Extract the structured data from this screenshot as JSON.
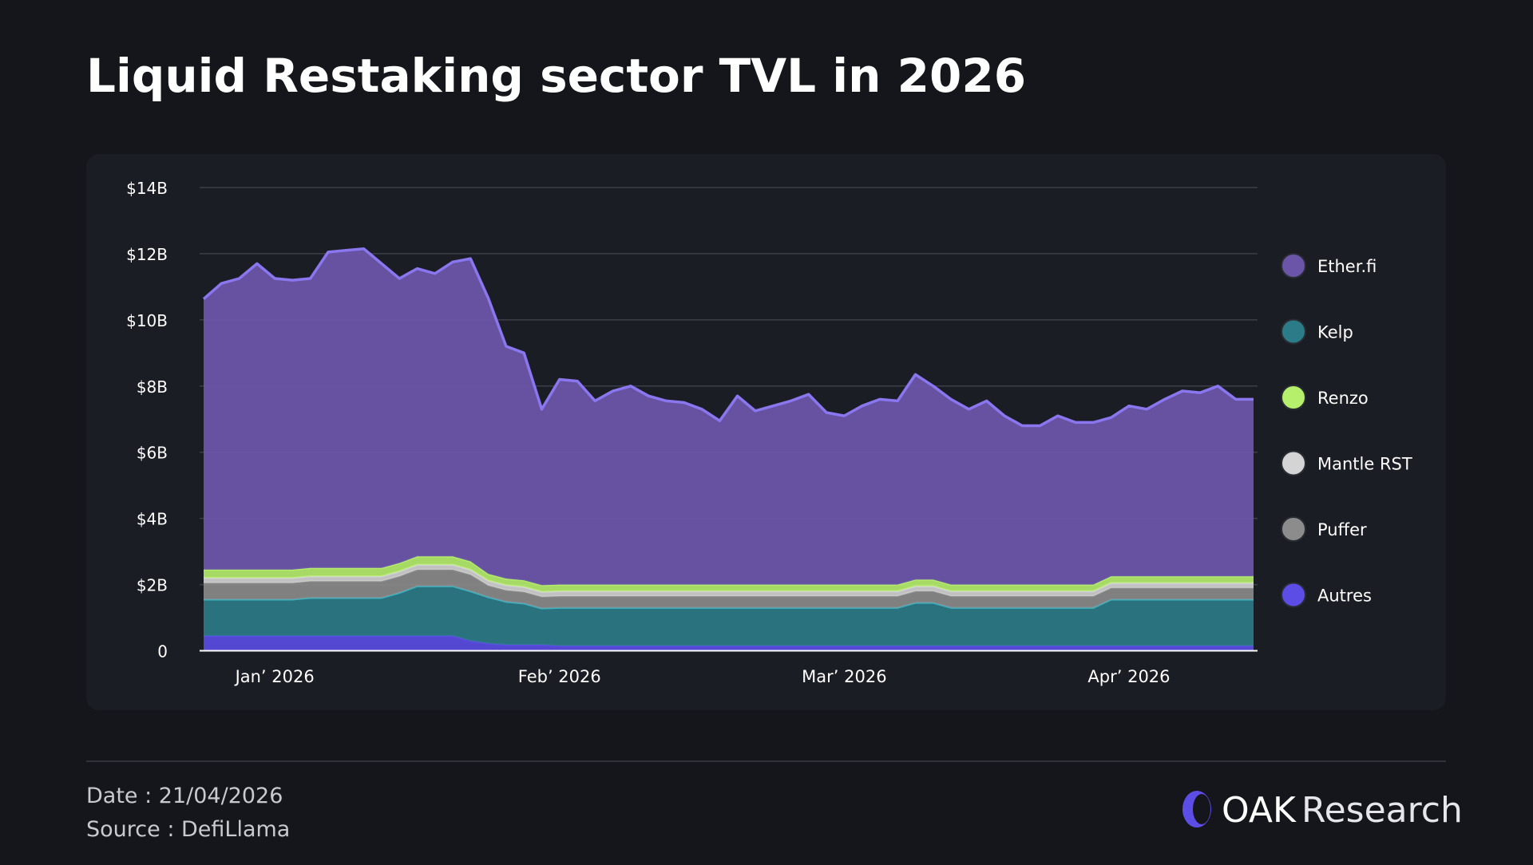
{
  "chart_data": {
    "type": "stacked_area",
    "title": "Liquid Restaking sector TVL in 2026",
    "categories": [
      null,
      null,
      null,
      null,
      "Jan’ 2026",
      null,
      null,
      null,
      null,
      null,
      null,
      null,
      null,
      null,
      null,
      null,
      null,
      null,
      null,
      null,
      "Feb’ 2026",
      null,
      null,
      null,
      null,
      null,
      null,
      null,
      null,
      null,
      null,
      null,
      null,
      null,
      null,
      null,
      "Mar’ 2026",
      null,
      null,
      null,
      null,
      null,
      null,
      null,
      null,
      null,
      null,
      null,
      null,
      null,
      null,
      null,
      "Apr’ 2026",
      null,
      null,
      null,
      null,
      null,
      null,
      null
    ],
    "ylim": [
      0,
      14
    ],
    "yticks": [
      0,
      {
        "value": 2,
        "label": "$2B"
      },
      {
        "value": 4,
        "label": "$4B"
      },
      {
        "value": 6,
        "label": "$6B"
      },
      {
        "value": 8,
        "label": "$8B"
      },
      {
        "value": 10,
        "label": "$10B"
      },
      {
        "value": 12,
        "label": "$12B"
      },
      {
        "value": 14,
        "label": "$14B"
      }
    ],
    "grid": true,
    "legend": "right",
    "series": [
      {
        "name": "Ether.fi",
        "color": "#6a55a8",
        "values": [
          8.18,
          8.65,
          8.8,
          9.25,
          8.8,
          8.75,
          8.75,
          9.55,
          9.6,
          9.65,
          9.2,
          8.6,
          8.7,
          8.55,
          8.9,
          9.15,
          8.33,
          7.02,
          6.87,
          5.32,
          6.2,
          6.15,
          5.55,
          5.85,
          6.0,
          5.7,
          5.55,
          5.5,
          5.3,
          4.95,
          5.7,
          5.25,
          5.4,
          5.55,
          5.75,
          5.2,
          5.1,
          5.4,
          5.6,
          5.55,
          6.2,
          5.85,
          5.6,
          5.3,
          5.55,
          5.1,
          4.8,
          4.8,
          5.1,
          4.9,
          4.9,
          4.8,
          5.15,
          5.05,
          5.35,
          5.6,
          5.55,
          5.75,
          5.35,
          5.35
        ]
      },
      {
        "name": "Kelp",
        "color": "#2b7c88",
        "values": [
          1.1,
          1.1,
          1.1,
          1.1,
          1.1,
          1.1,
          1.15,
          1.15,
          1.15,
          1.15,
          1.15,
          1.3,
          1.5,
          1.5,
          1.5,
          1.5,
          1.4,
          1.3,
          1.25,
          1.1,
          1.15,
          1.15,
          1.15,
          1.15,
          1.15,
          1.15,
          1.15,
          1.15,
          1.15,
          1.15,
          1.15,
          1.15,
          1.15,
          1.15,
          1.15,
          1.15,
          1.15,
          1.15,
          1.15,
          1.15,
          1.3,
          1.3,
          1.15,
          1.15,
          1.15,
          1.15,
          1.15,
          1.15,
          1.15,
          1.15,
          1.15,
          1.4,
          1.4,
          1.4,
          1.4,
          1.4,
          1.4,
          1.4,
          1.4,
          1.4
        ]
      },
      {
        "name": "Renzo",
        "color": "#b6ef6c",
        "values": [
          0.25,
          0.25,
          0.25,
          0.25,
          0.25,
          0.25,
          0.25,
          0.25,
          0.25,
          0.25,
          0.25,
          0.25,
          0.25,
          0.25,
          0.25,
          0.25,
          0.2,
          0.2,
          0.2,
          0.2,
          0.2,
          0.2,
          0.2,
          0.2,
          0.2,
          0.2,
          0.2,
          0.2,
          0.2,
          0.2,
          0.2,
          0.2,
          0.2,
          0.2,
          0.2,
          0.2,
          0.2,
          0.2,
          0.2,
          0.2,
          0.2,
          0.2,
          0.2,
          0.2,
          0.2,
          0.2,
          0.2,
          0.2,
          0.2,
          0.2,
          0.2,
          0.2,
          0.2,
          0.2,
          0.2,
          0.2,
          0.2,
          0.2,
          0.2,
          0.2
        ]
      },
      {
        "name": "Mantle RST",
        "color": "#d4d4d4",
        "values": [
          0.15,
          0.15,
          0.15,
          0.15,
          0.15,
          0.15,
          0.15,
          0.15,
          0.15,
          0.15,
          0.15,
          0.15,
          0.15,
          0.15,
          0.15,
          0.15,
          0.15,
          0.15,
          0.15,
          0.15,
          0.15,
          0.15,
          0.15,
          0.15,
          0.15,
          0.15,
          0.15,
          0.15,
          0.15,
          0.15,
          0.15,
          0.15,
          0.15,
          0.15,
          0.15,
          0.15,
          0.15,
          0.15,
          0.15,
          0.15,
          0.15,
          0.15,
          0.15,
          0.15,
          0.15,
          0.15,
          0.15,
          0.15,
          0.15,
          0.15,
          0.15,
          0.15,
          0.15,
          0.15,
          0.15,
          0.15,
          0.15,
          0.15,
          0.15,
          0.15
        ]
      },
      {
        "name": "Puffer",
        "color": "#8c8c8c",
        "values": [
          0.5,
          0.5,
          0.5,
          0.5,
          0.5,
          0.5,
          0.5,
          0.5,
          0.5,
          0.5,
          0.5,
          0.5,
          0.5,
          0.5,
          0.5,
          0.5,
          0.35,
          0.35,
          0.35,
          0.35,
          0.35,
          0.35,
          0.35,
          0.35,
          0.35,
          0.35,
          0.35,
          0.35,
          0.35,
          0.35,
          0.35,
          0.35,
          0.35,
          0.35,
          0.35,
          0.35,
          0.35,
          0.35,
          0.35,
          0.35,
          0.35,
          0.35,
          0.35,
          0.35,
          0.35,
          0.35,
          0.35,
          0.35,
          0.35,
          0.35,
          0.35,
          0.35,
          0.35,
          0.35,
          0.35,
          0.35,
          0.35,
          0.35,
          0.35,
          0.35
        ]
      },
      {
        "name": "Autres",
        "color": "#5b4de6",
        "values": [
          0.45,
          0.45,
          0.45,
          0.45,
          0.45,
          0.45,
          0.45,
          0.45,
          0.45,
          0.45,
          0.45,
          0.45,
          0.45,
          0.45,
          0.45,
          0.3,
          0.22,
          0.18,
          0.18,
          0.18,
          0.15,
          0.15,
          0.15,
          0.15,
          0.15,
          0.15,
          0.15,
          0.15,
          0.15,
          0.15,
          0.15,
          0.15,
          0.15,
          0.15,
          0.15,
          0.15,
          0.15,
          0.15,
          0.15,
          0.15,
          0.15,
          0.15,
          0.15,
          0.15,
          0.15,
          0.15,
          0.15,
          0.15,
          0.15,
          0.15,
          0.15,
          0.15,
          0.15,
          0.15,
          0.15,
          0.15,
          0.15,
          0.15,
          0.15,
          0.15
        ]
      }
    ]
  },
  "footer": {
    "date": "Date : 21/04/2026",
    "source": "Source : DefiLlama",
    "brand": "OAK",
    "brand_sub": "Research"
  }
}
